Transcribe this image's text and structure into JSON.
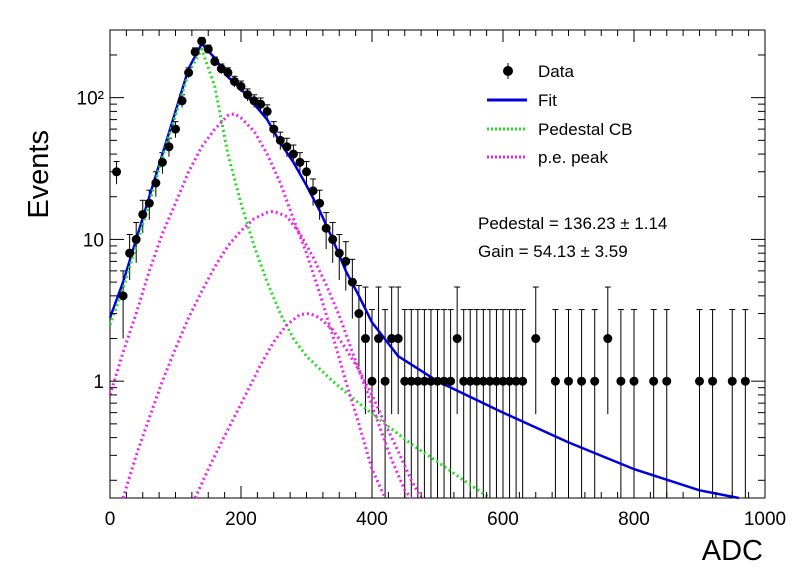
{
  "chart_data": {
    "type": "scatter",
    "title": "",
    "xlabel": "ADC",
    "ylabel": "Events",
    "xlim": [
      0,
      1000
    ],
    "ylim": [
      0.15,
      300
    ],
    "yscale": "log",
    "grid": false,
    "legend_position": "top-right",
    "x_ticks": [
      0,
      200,
      400,
      600,
      800,
      1000
    ],
    "x_tick_labels": [
      "0",
      "200",
      "400",
      "600",
      "800",
      "1000"
    ],
    "y_ticks": [
      1,
      10,
      100
    ],
    "y_tick_labels": [
      "1",
      "10",
      "10²"
    ],
    "annotations": {
      "pedestal": "Pedestal = 136.23 ± 1.14",
      "gain": "Gain = 54.13 ± 3.59"
    },
    "legend": [
      {
        "key": "data",
        "label": "Data",
        "style": "marker"
      },
      {
        "key": "fit",
        "label": "Fit",
        "style": "line",
        "color": "#0000dd"
      },
      {
        "key": "pedestal",
        "label": "Pedestal CB",
        "style": "dotted",
        "color": "#22dd22"
      },
      {
        "key": "pe",
        "label": "p.e. peak",
        "style": "dotted",
        "color": "#ee22ee"
      }
    ],
    "series": [
      {
        "name": "Data",
        "color": "#000000",
        "points": [
          [
            10,
            30
          ],
          [
            20,
            4
          ],
          [
            30,
            8
          ],
          [
            40,
            10
          ],
          [
            50,
            15
          ],
          [
            60,
            18
          ],
          [
            70,
            25
          ],
          [
            80,
            35
          ],
          [
            90,
            45
          ],
          [
            100,
            60
          ],
          [
            110,
            95
          ],
          [
            120,
            150
          ],
          [
            130,
            210
          ],
          [
            140,
            250
          ],
          [
            150,
            220
          ],
          [
            160,
            180
          ],
          [
            170,
            160
          ],
          [
            180,
            150
          ],
          [
            190,
            130
          ],
          [
            200,
            120
          ],
          [
            210,
            105
          ],
          [
            220,
            95
          ],
          [
            230,
            90
          ],
          [
            240,
            80
          ],
          [
            250,
            60
          ],
          [
            260,
            50
          ],
          [
            270,
            45
          ],
          [
            280,
            40
          ],
          [
            290,
            35
          ],
          [
            300,
            30
          ],
          [
            310,
            22
          ],
          [
            320,
            18
          ],
          [
            330,
            12
          ],
          [
            340,
            10
          ],
          [
            350,
            8
          ],
          [
            360,
            7
          ],
          [
            370,
            5
          ],
          [
            380,
            3
          ],
          [
            390,
            2
          ],
          [
            400,
            1
          ],
          [
            410,
            2
          ],
          [
            420,
            1
          ],
          [
            430,
            2
          ],
          [
            440,
            2
          ],
          [
            450,
            1
          ],
          [
            460,
            1
          ],
          [
            470,
            1
          ],
          [
            480,
            1
          ],
          [
            490,
            1
          ],
          [
            500,
            1
          ],
          [
            510,
            1
          ],
          [
            520,
            1
          ],
          [
            530,
            2
          ],
          [
            540,
            1
          ],
          [
            550,
            1
          ],
          [
            560,
            1
          ],
          [
            570,
            1
          ],
          [
            580,
            1
          ],
          [
            590,
            1
          ],
          [
            600,
            1
          ],
          [
            610,
            1
          ],
          [
            620,
            1
          ],
          [
            630,
            1
          ],
          [
            650,
            2
          ],
          [
            680,
            1
          ],
          [
            700,
            1
          ],
          [
            720,
            1
          ],
          [
            740,
            1
          ],
          [
            760,
            2
          ],
          [
            780,
            1
          ],
          [
            800,
            1
          ],
          [
            830,
            1
          ],
          [
            850,
            1
          ],
          [
            900,
            1
          ],
          [
            920,
            1
          ],
          [
            950,
            1
          ],
          [
            970,
            1
          ]
        ]
      },
      {
        "name": "Fit",
        "color": "#0000dd",
        "points": [
          [
            0,
            2.8
          ],
          [
            20,
            5
          ],
          [
            40,
            10
          ],
          [
            60,
            20
          ],
          [
            80,
            40
          ],
          [
            100,
            80
          ],
          [
            120,
            160
          ],
          [
            140,
            240
          ],
          [
            160,
            190
          ],
          [
            180,
            140
          ],
          [
            200,
            115
          ],
          [
            220,
            90
          ],
          [
            240,
            70
          ],
          [
            260,
            48
          ],
          [
            280,
            35
          ],
          [
            300,
            24
          ],
          [
            320,
            16
          ],
          [
            340,
            10
          ],
          [
            360,
            6
          ],
          [
            380,
            4
          ],
          [
            400,
            2.6
          ],
          [
            440,
            1.5
          ],
          [
            500,
            1.0
          ],
          [
            600,
            0.6
          ],
          [
            700,
            0.37
          ],
          [
            800,
            0.24
          ],
          [
            900,
            0.17
          ],
          [
            960,
            0.15
          ]
        ]
      },
      {
        "name": "Pedestal CB",
        "color": "#22dd22",
        "points": [
          [
            0,
            2.5
          ],
          [
            20,
            4.5
          ],
          [
            40,
            9
          ],
          [
            60,
            18
          ],
          [
            80,
            38
          ],
          [
            100,
            75
          ],
          [
            120,
            150
          ],
          [
            140,
            220
          ],
          [
            160,
            120
          ],
          [
            180,
            40
          ],
          [
            200,
            18
          ],
          [
            220,
            9
          ],
          [
            240,
            5
          ],
          [
            260,
            3
          ],
          [
            280,
            2
          ],
          [
            300,
            1.5
          ],
          [
            340,
            1.0
          ],
          [
            380,
            0.7
          ],
          [
            420,
            0.5
          ],
          [
            460,
            0.36
          ],
          [
            500,
            0.27
          ],
          [
            540,
            0.2
          ],
          [
            580,
            0.15
          ]
        ]
      },
      {
        "name": "p.e. peak 1",
        "color": "#ee22ee",
        "points": [
          [
            0,
            0.8
          ],
          [
            20,
            1.6
          ],
          [
            40,
            3
          ],
          [
            60,
            6
          ],
          [
            80,
            11
          ],
          [
            100,
            18
          ],
          [
            120,
            30
          ],
          [
            140,
            45
          ],
          [
            160,
            60
          ],
          [
            180,
            75
          ],
          [
            190,
            77
          ],
          [
            200,
            72
          ],
          [
            220,
            58
          ],
          [
            240,
            40
          ],
          [
            260,
            25
          ],
          [
            280,
            14
          ],
          [
            300,
            8
          ],
          [
            320,
            4.2
          ],
          [
            340,
            2.1
          ],
          [
            360,
            1.0
          ],
          [
            380,
            0.5
          ],
          [
            400,
            0.24
          ],
          [
            420,
            0.15
          ]
        ]
      },
      {
        "name": "p.e. peak 2",
        "color": "#ee22ee",
        "points": [
          [
            20,
            0.15
          ],
          [
            40,
            0.3
          ],
          [
            60,
            0.55
          ],
          [
            80,
            1.0
          ],
          [
            100,
            1.7
          ],
          [
            120,
            2.8
          ],
          [
            140,
            4.3
          ],
          [
            160,
            6.4
          ],
          [
            180,
            9
          ],
          [
            200,
            11.5
          ],
          [
            220,
            14
          ],
          [
            240,
            15.5
          ],
          [
            250,
            15.8
          ],
          [
            270,
            14.5
          ],
          [
            290,
            11
          ],
          [
            310,
            7.5
          ],
          [
            330,
            4.8
          ],
          [
            350,
            2.9
          ],
          [
            370,
            1.6
          ],
          [
            390,
            0.9
          ],
          [
            410,
            0.5
          ],
          [
            430,
            0.28
          ],
          [
            450,
            0.17
          ],
          [
            460,
            0.15
          ]
        ]
      },
      {
        "name": "p.e. peak 3",
        "color": "#ee22ee",
        "points": [
          [
            130,
            0.15
          ],
          [
            150,
            0.24
          ],
          [
            170,
            0.37
          ],
          [
            190,
            0.56
          ],
          [
            210,
            0.85
          ],
          [
            230,
            1.3
          ],
          [
            250,
            1.9
          ],
          [
            270,
            2.5
          ],
          [
            290,
            2.95
          ],
          [
            305,
            3.0
          ],
          [
            320,
            2.8
          ],
          [
            340,
            2.3
          ],
          [
            360,
            1.7
          ],
          [
            380,
            1.2
          ],
          [
            400,
            0.8
          ],
          [
            420,
            0.5
          ],
          [
            440,
            0.32
          ],
          [
            460,
            0.2
          ],
          [
            475,
            0.15
          ]
        ]
      }
    ]
  }
}
